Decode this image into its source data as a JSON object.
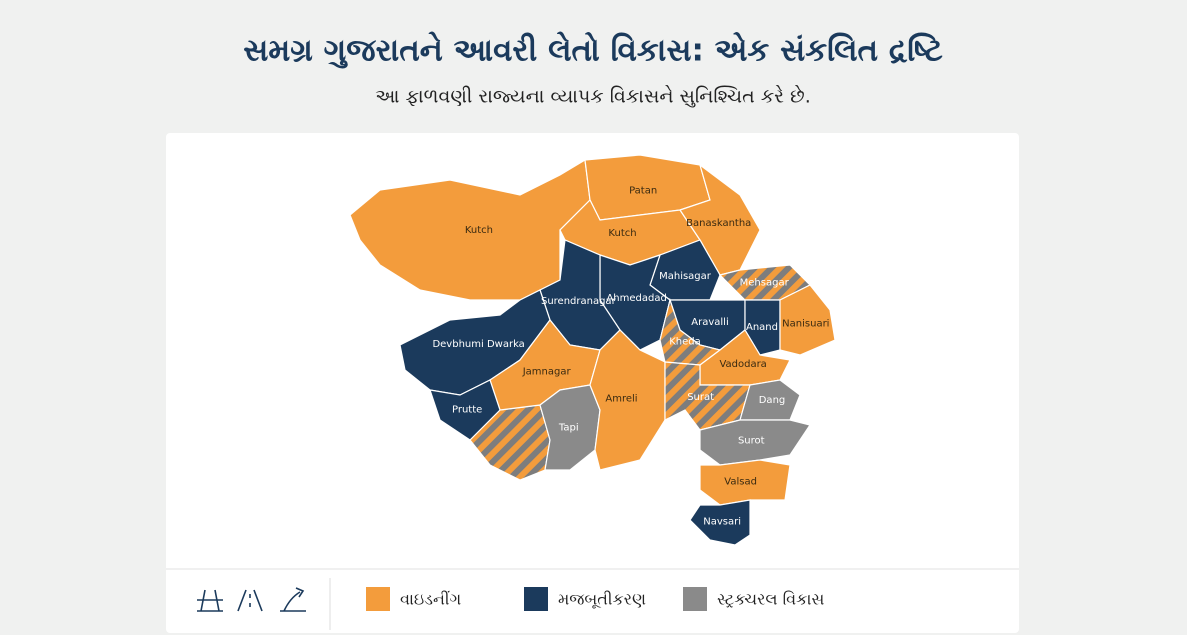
{
  "header": {
    "title": "સમગ્ર ગુજરાતને આવરી લેતો વિકાસ: એક સંકલિત દ્રષ્ટિ",
    "subtitle": "આ ફાળવણી રાજ્યના વ્યાપક વિકાસને સુનિશ્ચિત કરે છે."
  },
  "map": {
    "regions": [
      {
        "label": "Kutch",
        "color": "#f39c3c"
      },
      {
        "label": "Patan",
        "color": "#f39c3c"
      },
      {
        "label": "Kutch",
        "color": "#f39c3c"
      },
      {
        "label": "Banaskantha",
        "color": "#f39c3c"
      },
      {
        "label": "Mahisagar",
        "color": "#1b3a5c"
      },
      {
        "label": "Mehsagar",
        "color": "hatch"
      },
      {
        "label": "Ahmedadad",
        "color": "#1b3a5c"
      },
      {
        "label": "Surendranagar",
        "color": "#1b3a5c"
      },
      {
        "label": "Aravalli",
        "color": "#1b3a5c"
      },
      {
        "label": "Anand",
        "color": "#1b3a5c"
      },
      {
        "label": "Nanisuari",
        "color": "#f39c3c"
      },
      {
        "label": "Kheda",
        "color": "hatch"
      },
      {
        "label": "Devbhumi Dwarka",
        "color": "#1b3a5c"
      },
      {
        "label": "Jamnagar",
        "color": "#f39c3c"
      },
      {
        "label": "Prutte",
        "color": "#1b3a5c"
      },
      {
        "label": "Tapi",
        "color": "#8a8a8a"
      },
      {
        "label": "Amreli",
        "color": "#f39c3c"
      },
      {
        "label": "Vadodara",
        "color": "#f39c3c"
      },
      {
        "label": "Surat",
        "color": "hatch"
      },
      {
        "label": "Dang",
        "color": "#8a8a8a"
      },
      {
        "label": "Surot",
        "color": "#8a8a8a"
      },
      {
        "label": "Valsad",
        "color": "#f39c3c"
      },
      {
        "label": "Navsari",
        "color": "#1b3a5c"
      }
    ]
  },
  "legend": {
    "items": [
      {
        "label": "વાઇડનીંગ",
        "color": "#f39c3c"
      },
      {
        "label": "મજબૂતીકરણ",
        "color": "#1b3a5c"
      },
      {
        "label": "સ્ટ્રક્ચરલ વિકાસ",
        "color": "#8a8a8a"
      }
    ]
  }
}
